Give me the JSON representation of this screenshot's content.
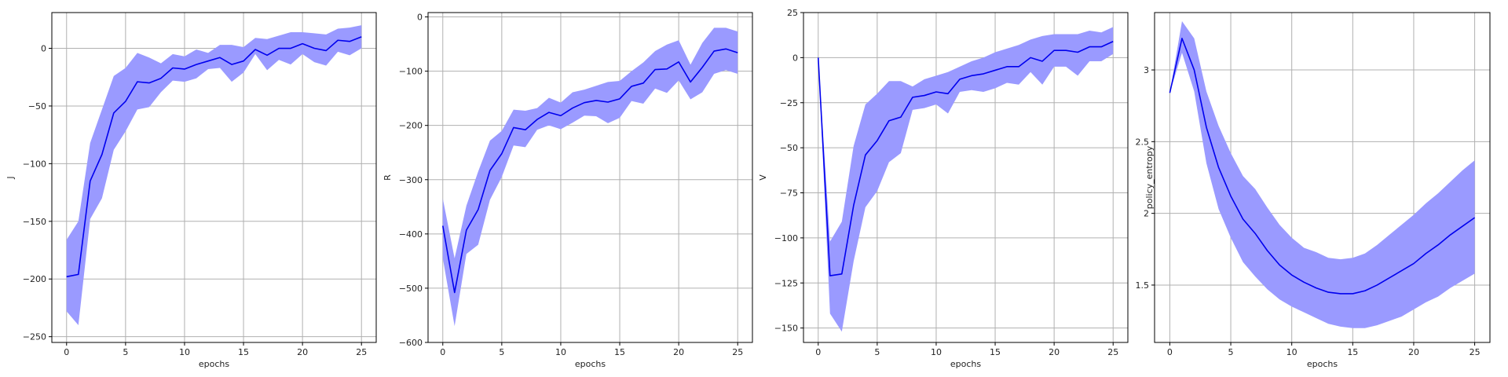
{
  "colors": {
    "band": "#9a9aff",
    "line": "#0000ee",
    "grid": "#b0b0b0"
  },
  "chart_data": [
    {
      "type": "line",
      "xlabel": "epochs",
      "ylabel": "J",
      "xlim": [
        -1.25,
        26.25
      ],
      "ylim": [
        -255,
        31
      ],
      "xticks": [
        0,
        5,
        10,
        15,
        20,
        25
      ],
      "yticks": [
        -250,
        -200,
        -150,
        -100,
        -50,
        0
      ],
      "grid": true,
      "x": [
        0,
        1,
        2,
        3,
        4,
        5,
        6,
        7,
        8,
        9,
        10,
        11,
        12,
        13,
        14,
        15,
        16,
        17,
        18,
        19,
        20,
        21,
        22,
        23,
        24,
        25
      ],
      "series": [
        {
          "values": [
            -198,
            -196,
            -115,
            -92,
            -56,
            -46,
            -29,
            -30,
            -26,
            -17,
            -18,
            -14,
            -11,
            -8,
            -14,
            -11,
            -1,
            -6,
            0,
            0,
            4,
            0,
            -2,
            7,
            6,
            10
          ],
          "lower": [
            -228,
            -240,
            -148,
            -130,
            -88,
            -72,
            -53,
            -51,
            -38,
            -28,
            -29,
            -26,
            -18,
            -17,
            -29,
            -21,
            -5,
            -19,
            -10,
            -14,
            -5,
            -12,
            -15,
            -3,
            -6,
            0
          ],
          "upper": [
            -166,
            -150,
            -82,
            -53,
            -24,
            -17,
            -4,
            -8,
            -13,
            -5,
            -7,
            -1,
            -4,
            3,
            3,
            1,
            9,
            8,
            11,
            14,
            14,
            13,
            12,
            17,
            18,
            20
          ]
        }
      ]
    },
    {
      "type": "line",
      "xlabel": "epochs",
      "ylabel": "R",
      "xlim": [
        -1.25,
        26.25
      ],
      "ylim": [
        -600,
        8
      ],
      "xticks": [
        0,
        5,
        10,
        15,
        20,
        25
      ],
      "yticks": [
        -600,
        -500,
        -400,
        -300,
        -200,
        -100,
        0
      ],
      "grid": true,
      "x": [
        0,
        1,
        2,
        3,
        4,
        5,
        6,
        7,
        8,
        9,
        10,
        11,
        12,
        13,
        14,
        15,
        16,
        17,
        18,
        19,
        20,
        21,
        22,
        23,
        24,
        25
      ],
      "series": [
        {
          "values": [
            -385,
            -508,
            -393,
            -355,
            -283,
            -252,
            -204,
            -208,
            -189,
            -176,
            -182,
            -168,
            -158,
            -154,
            -157,
            -151,
            -128,
            -122,
            -97,
            -96,
            -83,
            -120,
            -93,
            -63,
            -59,
            -66
          ],
          "lower": [
            -445,
            -570,
            -437,
            -420,
            -337,
            -295,
            -237,
            -240,
            -208,
            -200,
            -207,
            -195,
            -182,
            -183,
            -196,
            -186,
            -155,
            -160,
            -132,
            -140,
            -117,
            -152,
            -139,
            -105,
            -98,
            -105
          ],
          "upper": [
            -335,
            -445,
            -348,
            -285,
            -228,
            -210,
            -171,
            -173,
            -168,
            -149,
            -158,
            -139,
            -134,
            -127,
            -120,
            -118,
            -100,
            -84,
            -63,
            -51,
            -43,
            -88,
            -48,
            -20,
            -20,
            -27
          ]
        }
      ]
    },
    {
      "type": "line",
      "xlabel": "epochs",
      "ylabel": "V",
      "xlim": [
        -1.25,
        26.25
      ],
      "ylim": [
        -158,
        25
      ],
      "xticks": [
        0,
        5,
        10,
        15,
        20,
        25
      ],
      "yticks": [
        -150,
        -125,
        -100,
        -75,
        -50,
        -25,
        0,
        25
      ],
      "grid": true,
      "x": [
        0,
        1,
        2,
        3,
        4,
        5,
        6,
        7,
        8,
        9,
        10,
        11,
        12,
        13,
        14,
        15,
        16,
        17,
        18,
        19,
        20,
        21,
        22,
        23,
        24,
        25
      ],
      "series": [
        {
          "values": [
            0,
            -121,
            -120,
            -82,
            -54,
            -46,
            -35,
            -33,
            -22,
            -21,
            -19,
            -20,
            -12,
            -10,
            -9,
            -7,
            -5,
            -5,
            0,
            -2,
            4,
            4,
            3,
            6,
            6,
            9
          ],
          "lower": [
            0,
            -142,
            -152,
            -113,
            -83,
            -74,
            -58,
            -53,
            -29,
            -28,
            -26,
            -31,
            -19,
            -18,
            -19,
            -17,
            -14,
            -15,
            -8,
            -15,
            -5,
            -5,
            -10,
            -2,
            -2,
            2
          ],
          "upper": [
            0,
            -102,
            -91,
            -49,
            -26,
            -20,
            -13,
            -13,
            -16,
            -12,
            -10,
            -8,
            -5,
            -2,
            0,
            3,
            5,
            7,
            10,
            12,
            13,
            13,
            13,
            15,
            14,
            17
          ]
        }
      ]
    },
    {
      "type": "line",
      "xlabel": "epochs",
      "ylabel": "policy_entropy",
      "xlim": [
        -1.25,
        26.25
      ],
      "ylim": [
        1.1,
        3.4
      ],
      "xticks": [
        0,
        5,
        10,
        15,
        20,
        25
      ],
      "yticks": [
        1.5,
        2.0,
        2.5,
        3.0
      ],
      "grid": true,
      "x": [
        0,
        1,
        2,
        3,
        4,
        5,
        6,
        7,
        8,
        9,
        10,
        11,
        12,
        13,
        14,
        15,
        16,
        17,
        18,
        19,
        20,
        21,
        22,
        23,
        24,
        25
      ],
      "series": [
        {
          "values": [
            2.84,
            3.22,
            3.0,
            2.6,
            2.32,
            2.12,
            1.96,
            1.86,
            1.74,
            1.64,
            1.57,
            1.52,
            1.48,
            1.45,
            1.44,
            1.44,
            1.46,
            1.5,
            1.55,
            1.6,
            1.65,
            1.72,
            1.78,
            1.85,
            1.91,
            1.97
          ],
          "lower": [
            2.84,
            3.12,
            2.85,
            2.35,
            2.03,
            1.83,
            1.66,
            1.56,
            1.47,
            1.4,
            1.35,
            1.31,
            1.27,
            1.23,
            1.21,
            1.2,
            1.2,
            1.22,
            1.25,
            1.28,
            1.33,
            1.38,
            1.42,
            1.48,
            1.53,
            1.58
          ],
          "upper": [
            2.84,
            3.34,
            3.22,
            2.85,
            2.61,
            2.42,
            2.26,
            2.17,
            2.04,
            1.92,
            1.83,
            1.76,
            1.73,
            1.69,
            1.68,
            1.69,
            1.72,
            1.78,
            1.85,
            1.92,
            1.99,
            2.07,
            2.14,
            2.22,
            2.3,
            2.37
          ]
        }
      ]
    }
  ]
}
